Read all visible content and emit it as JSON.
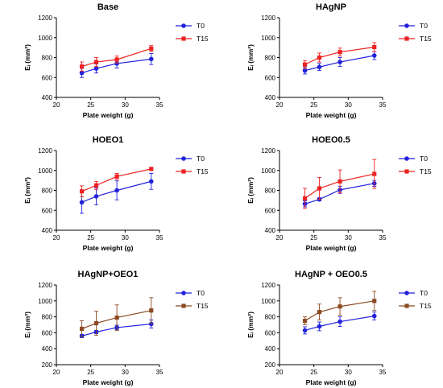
{
  "chart_data": [
    {
      "type": "line",
      "title": "Base",
      "xlabel": "Plate weight (g)",
      "ylabel": "Eᵢ (mm²)",
      "xlim": [
        20,
        35
      ],
      "ylim": [
        400,
        1200
      ],
      "xticks": [
        "20",
        "25",
        "30",
        "35"
      ],
      "yticks": [
        "400",
        "600",
        "800",
        "1000",
        "1200"
      ],
      "x": [
        23.7,
        25.8,
        28.8,
        33.8
      ],
      "legend_position": "top-right",
      "series": [
        {
          "name": "T0",
          "color": "#2222dd",
          "values": [
            645,
            690,
            740,
            785
          ],
          "errors": [
            45,
            45,
            45,
            55
          ]
        },
        {
          "name": "T15",
          "color": "#ee2222",
          "values": [
            710,
            755,
            780,
            890
          ],
          "errors": [
            45,
            45,
            35,
            30
          ]
        }
      ]
    },
    {
      "type": "line",
      "title": "HAgNP",
      "xlabel": "Plate weight (g)",
      "ylabel": "Eᵢ (mm²)",
      "xlim": [
        20,
        35
      ],
      "ylim": [
        400,
        1200
      ],
      "xticks": [
        "20",
        "25",
        "30",
        "35"
      ],
      "yticks": [
        "400",
        "600",
        "800",
        "1000",
        "1200"
      ],
      "x": [
        23.7,
        25.8,
        28.8,
        33.8
      ],
      "legend_position": "top-right",
      "series": [
        {
          "name": "T0",
          "color": "#2222dd",
          "values": [
            670,
            705,
            755,
            820
          ],
          "errors": [
            35,
            35,
            45,
            40
          ]
        },
        {
          "name": "T15",
          "color": "#ee2222",
          "values": [
            730,
            800,
            855,
            905
          ],
          "errors": [
            40,
            45,
            40,
            45
          ]
        }
      ]
    },
    {
      "type": "line",
      "title": "HOEO1",
      "xlabel": "Plate weight (g)",
      "ylabel": "Eᵢ (mm²)",
      "xlim": [
        20,
        35
      ],
      "ylim": [
        400,
        1200
      ],
      "xticks": [
        "20",
        "25",
        "30",
        "35"
      ],
      "yticks": [
        "400",
        "600",
        "800",
        "1000",
        "1200"
      ],
      "x": [
        23.7,
        25.8,
        28.8,
        33.8
      ],
      "legend_position": "top-right",
      "series": [
        {
          "name": "T0",
          "color": "#2222dd",
          "values": [
            680,
            740,
            800,
            890
          ],
          "errors": [
            110,
            85,
            95,
            80
          ]
        },
        {
          "name": "T15",
          "color": "#ee2222",
          "values": [
            790,
            850,
            940,
            1015
          ],
          "errors": [
            55,
            40,
            30,
            10
          ]
        }
      ]
    },
    {
      "type": "line",
      "title": "HOEO0.5",
      "xlabel": "Plate weight (g)",
      "ylabel": "Eᵢ (mm²)",
      "xlim": [
        20,
        35
      ],
      "ylim": [
        400,
        1200
      ],
      "xticks": [
        "20",
        "25",
        "30",
        "35"
      ],
      "yticks": [
        "400",
        "600",
        "800",
        "1000",
        "1200"
      ],
      "x": [
        23.7,
        25.8,
        28.8,
        33.8
      ],
      "legend_position": "top-right",
      "series": [
        {
          "name": "T0",
          "color": "#2222dd",
          "values": [
            665,
            710,
            805,
            870
          ],
          "errors": [
            30,
            15,
            35,
            30
          ]
        },
        {
          "name": "T15",
          "color": "#ee2222",
          "values": [
            720,
            820,
            890,
            965
          ],
          "errors": [
            100,
            110,
            115,
            145
          ]
        }
      ]
    },
    {
      "type": "line",
      "title": "HAgNP+OEO1",
      "xlabel": "Plate weight (g)",
      "ylabel": "Eᵢ (mm²)",
      "xlim": [
        20,
        35
      ],
      "ylim": [
        200,
        1200
      ],
      "xticks": [
        "20",
        "25",
        "30",
        "35"
      ],
      "yticks": [
        "200",
        "400",
        "600",
        "800",
        "1000",
        "1200"
      ],
      "x": [
        23.7,
        25.8,
        28.8,
        33.8
      ],
      "legend_position": "top-right",
      "series": [
        {
          "name": "T0",
          "color": "#2222dd",
          "values": [
            560,
            610,
            665,
            710
          ],
          "errors": [
            20,
            20,
            30,
            50
          ]
        },
        {
          "name": "T15",
          "color": "#8b4a22",
          "values": [
            650,
            720,
            790,
            880
          ],
          "errors": [
            100,
            150,
            160,
            160
          ]
        }
      ]
    },
    {
      "type": "line",
      "title": "HAgNP + OEO0.5",
      "xlabel": "Plate weight (g)",
      "ylabel": "Eᵢ (mm²)",
      "xlim": [
        20,
        35
      ],
      "ylim": [
        200,
        1200
      ],
      "xticks": [
        "20",
        "25",
        "30",
        "35"
      ],
      "yticks": [
        "200",
        "400",
        "600",
        "800",
        "1000",
        "1200"
      ],
      "x": [
        23.7,
        25.8,
        28.8,
        33.8
      ],
      "legend_position": "top-right",
      "series": [
        {
          "name": "T0",
          "color": "#2222dd",
          "values": [
            630,
            680,
            740,
            810
          ],
          "errors": [
            45,
            55,
            60,
            50
          ]
        },
        {
          "name": "T15",
          "color": "#8b4a22",
          "values": [
            750,
            860,
            930,
            1000
          ],
          "errors": [
            50,
            100,
            110,
            120
          ]
        }
      ]
    }
  ]
}
